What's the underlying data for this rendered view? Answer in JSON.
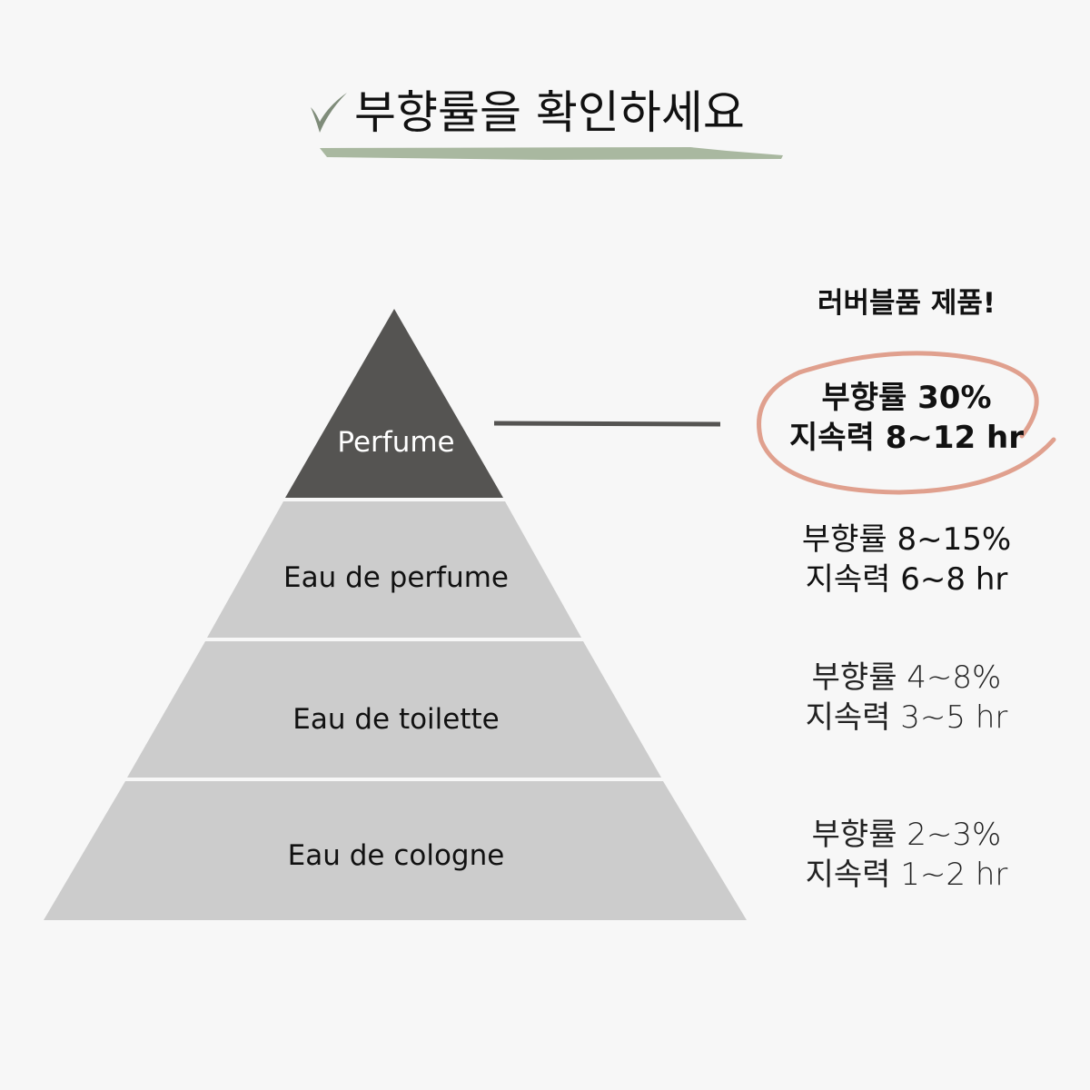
{
  "title": "부향률을 확인하세요",
  "colors": {
    "accent_green": "#a9b8a0",
    "check": "#7f8c7a",
    "circle": "#e0a08e",
    "top_tier": "#555452",
    "lower_tier": "#cccccc"
  },
  "highlight_label": "러버블품 제품!",
  "tiers": [
    {
      "name": "Perfume",
      "concentration": "부향률 30%",
      "longevity": "지속력 8~12 hr"
    },
    {
      "name": "Eau de perfume",
      "concentration": "부향률 8~15%",
      "longevity": "지속력 6~8 hr"
    },
    {
      "name": "Eau de toilette",
      "concentration": "부향률 4~8%",
      "longevity": "지속력 3~5 hr"
    },
    {
      "name": "Eau de cologne",
      "concentration": "부향률 2~3%",
      "longevity": "지속력 1~2 hr"
    }
  ]
}
